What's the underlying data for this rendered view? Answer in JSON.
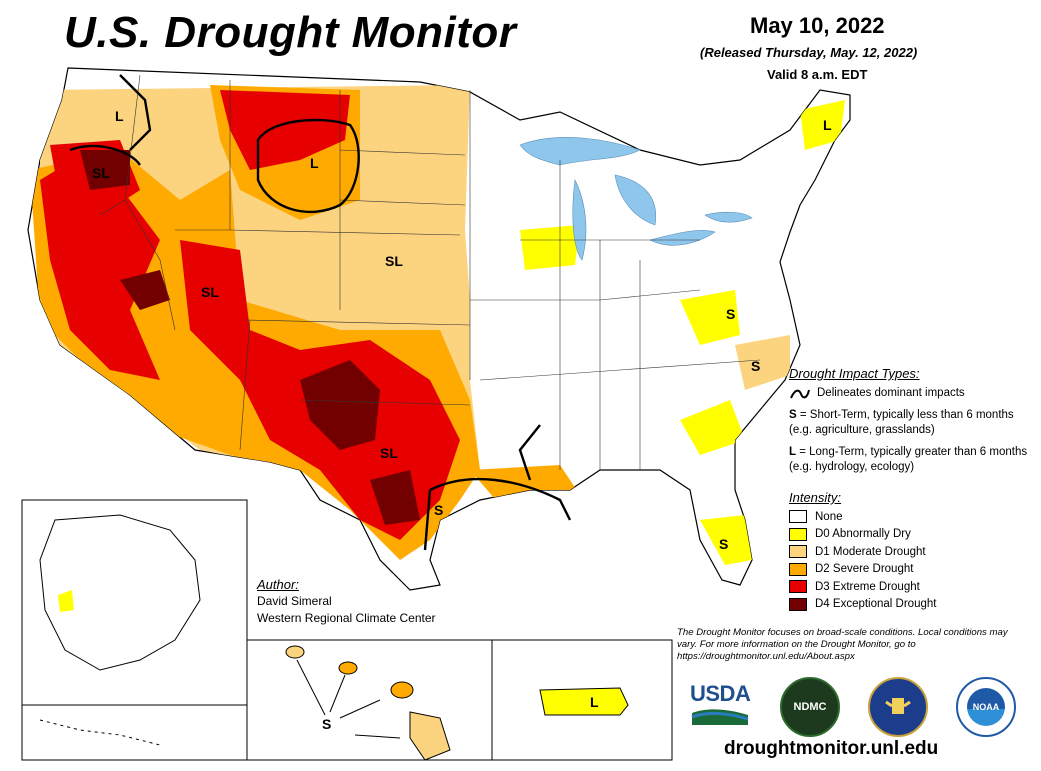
{
  "title": "U.S. Drought Monitor",
  "date": "May 10, 2022",
  "released": "(Released Thursday, May. 12, 2022)",
  "valid": "Valid 8 a.m. EDT",
  "impact_types": {
    "heading": "Drought Impact Types:",
    "delineates": "Delineates dominant impacts",
    "short_term_key": "S",
    "short_term_text": " = Short-Term, typically less than 6 months (e.g. agriculture, grasslands)",
    "long_term_key": "L",
    "long_term_text": " = Long-Term, typically greater than 6 months (e.g. hydrology, ecology)"
  },
  "intensity": {
    "heading": "Intensity:",
    "items": [
      {
        "label": "None",
        "color": "#ffffff"
      },
      {
        "label": "D0 Abnormally Dry",
        "color": "#ffff00"
      },
      {
        "label": "D1 Moderate Drought",
        "color": "#fcd37f"
      },
      {
        "label": "D2 Severe Drought",
        "color": "#ffaa00"
      },
      {
        "label": "D3 Extreme Drought",
        "color": "#e60000"
      },
      {
        "label": "D4 Exceptional Drought",
        "color": "#730000"
      }
    ]
  },
  "author": {
    "heading": "Author:",
    "name": "David Simeral",
    "org": "Western Regional Climate Center"
  },
  "disclaimer": "The Drought Monitor focuses on broad-scale conditions. Local conditions may vary. For more information on the Drought Monitor, go to https://droughtmonitor.unl.edu/About.aspx",
  "map_labels": {
    "conus": [
      "L",
      "L",
      "SL",
      "SL",
      "SL",
      "SL",
      "S",
      "S",
      "S",
      "S",
      "L"
    ],
    "hawaii": "S",
    "puerto_rico": "L"
  },
  "logos": {
    "usda": "USDA",
    "ndmc": "NDMC",
    "noaa": "NOAA"
  },
  "site_url": "droughtmonitor.unl.edu",
  "colors": {
    "water": "#8ec6ec",
    "d0": "#ffff00",
    "d1": "#fcd37f",
    "d2": "#ffaa00",
    "d3": "#e60000",
    "d4": "#730000"
  }
}
